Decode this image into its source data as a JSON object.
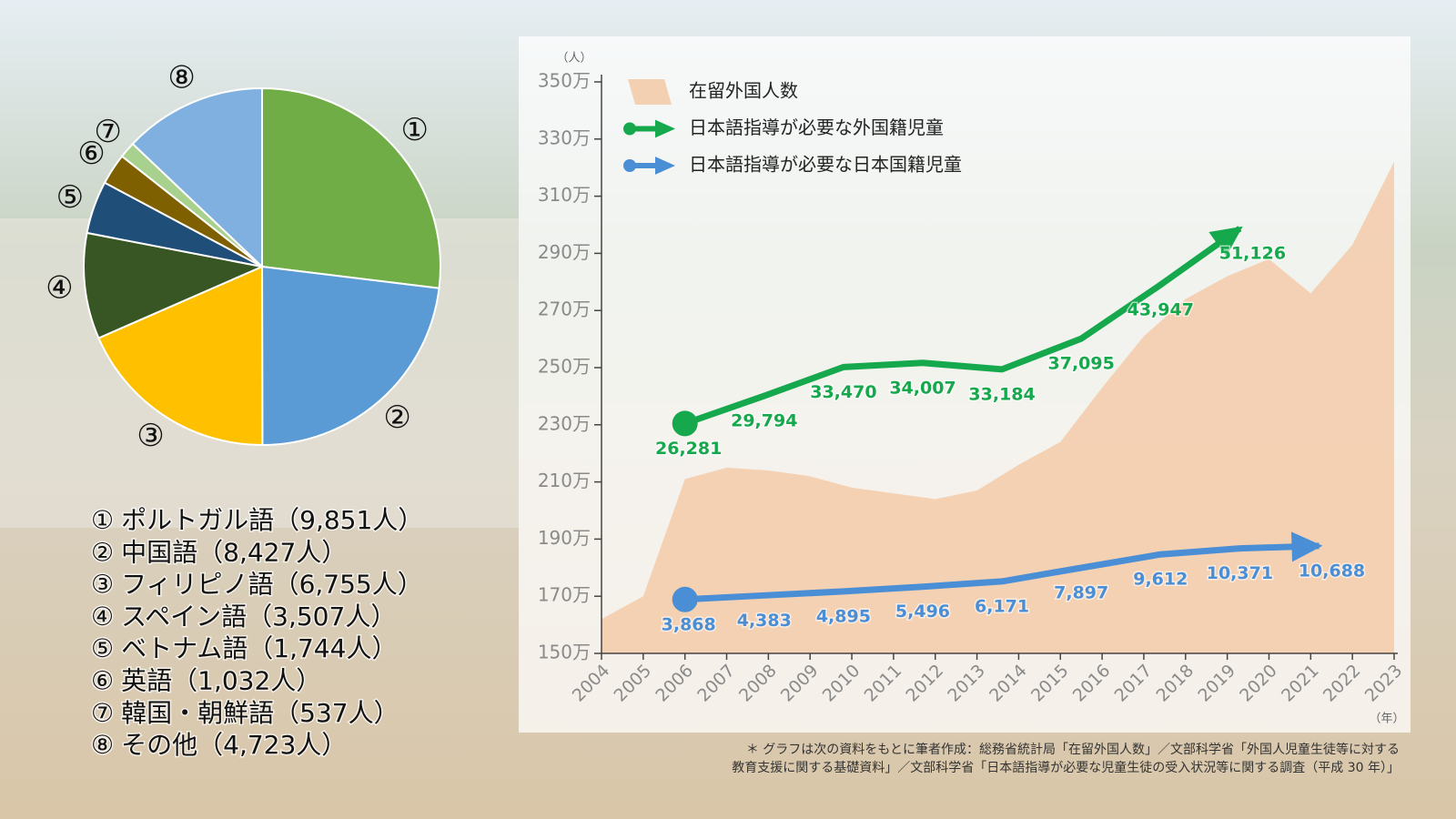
{
  "chart_data": [
    {
      "type": "pie",
      "markers": [
        "①",
        "②",
        "③",
        "④",
        "⑤",
        "⑥",
        "⑦",
        "⑧"
      ],
      "categories": [
        "ポルトガル語",
        "中国語",
        "フィリピノ語",
        "スペイン語",
        "ベトナム語",
        "英語",
        "韓国・朝鮮語",
        "その他"
      ],
      "values": [
        9851,
        8427,
        6755,
        3507,
        1744,
        1032,
        537,
        4723
      ],
      "value_labels": [
        "（9,851人）",
        "（8,427人）",
        "（6,755人）",
        "（3,507人）",
        "（1,744人）",
        "（1,032人）",
        "（537人）",
        "（4,723人）"
      ],
      "colors": [
        "#70ad47",
        "#5b9bd5",
        "#ffc000",
        "#375623",
        "#1f4e79",
        "#7f6000",
        "#a9d18e",
        "#7fb0e0"
      ]
    },
    {
      "type": "line",
      "ylabel": "（人）",
      "xlabel": "（年）",
      "x": [
        2004,
        2005,
        2006,
        2007,
        2008,
        2009,
        2010,
        2011,
        2012,
        2013,
        2014,
        2015,
        2016,
        2017,
        2018,
        2019,
        2020,
        2021,
        2022,
        2023
      ],
      "xlim": [
        2004,
        2023
      ],
      "xticks": [
        2004,
        2005,
        2006,
        2007,
        2008,
        2009,
        2010,
        2011,
        2012,
        2013,
        2014,
        2015,
        2016,
        2017,
        2018,
        2019,
        2020,
        2021,
        2022,
        2023
      ],
      "ylim": [
        150,
        350
      ],
      "yticks": [
        {
          "value": 150,
          "label": "150万"
        },
        {
          "value": 170,
          "label": "170万"
        },
        {
          "value": 190,
          "label": "190万"
        },
        {
          "value": 210,
          "label": "210万"
        },
        {
          "value": 230,
          "label": "230万"
        },
        {
          "value": 250,
          "label": "250万"
        },
        {
          "value": 270,
          "label": "270万"
        },
        {
          "value": 290,
          "label": "290万"
        },
        {
          "value": 310,
          "label": "310万"
        },
        {
          "value": 330,
          "label": "330万"
        },
        {
          "value": 350,
          "label": "350万"
        }
      ],
      "y2lim": [
        -3000,
        69800
      ],
      "legend": "top-left",
      "series": [
        {
          "name": "在留外国人数",
          "kind": "area",
          "color": "#f4c6a0",
          "values": [
            162,
            170,
            211,
            215,
            214,
            212,
            208,
            206,
            204,
            207,
            216,
            224,
            243,
            261,
            274,
            282,
            288,
            276,
            293,
            322
          ]
        },
        {
          "name": "日本語指導が必要な外国籍児童",
          "kind": "line",
          "axis": "y2",
          "color": "#16a84c",
          "x": [
            2006,
            2007.9,
            2009.8,
            2011.7,
            2013.6,
            2015.5,
            2017.4,
            2019.3
          ],
          "values": [
            26281,
            29794,
            33470,
            34007,
            33184,
            37095,
            43947,
            51126
          ],
          "value_labels": [
            "26,281",
            "29,794",
            "33,470",
            "34,007",
            "33,184",
            "37,095",
            "43,947",
            "51,126"
          ]
        },
        {
          "name": "日本語指導が必要な日本国籍児童",
          "kind": "line",
          "axis": "y2",
          "color": "#4a8fd6",
          "x": [
            2006,
            2007.9,
            2009.8,
            2011.7,
            2013.6,
            2015.5,
            2017.4,
            2019.3,
            2021.2
          ],
          "values": [
            3868,
            4383,
            4895,
            5496,
            6171,
            7897,
            9612,
            10371,
            10688
          ],
          "value_labels": [
            "3,868",
            "4,383",
            "4,895",
            "5,496",
            "6,171",
            "7,897",
            "9,612",
            "10,371",
            "10,688"
          ]
        }
      ],
      "note": [
        "＊ グラフは次の資料をもとに筆者作成：総務省統計局「在留外国人数」／文部科学省「外国人児童生徒等に対する",
        "教育支援に関する基礎資料」／文部科学省「日本語指導が必要な児童生徒の受入状況等に関する調査（平成 30 年）」"
      ]
    }
  ]
}
